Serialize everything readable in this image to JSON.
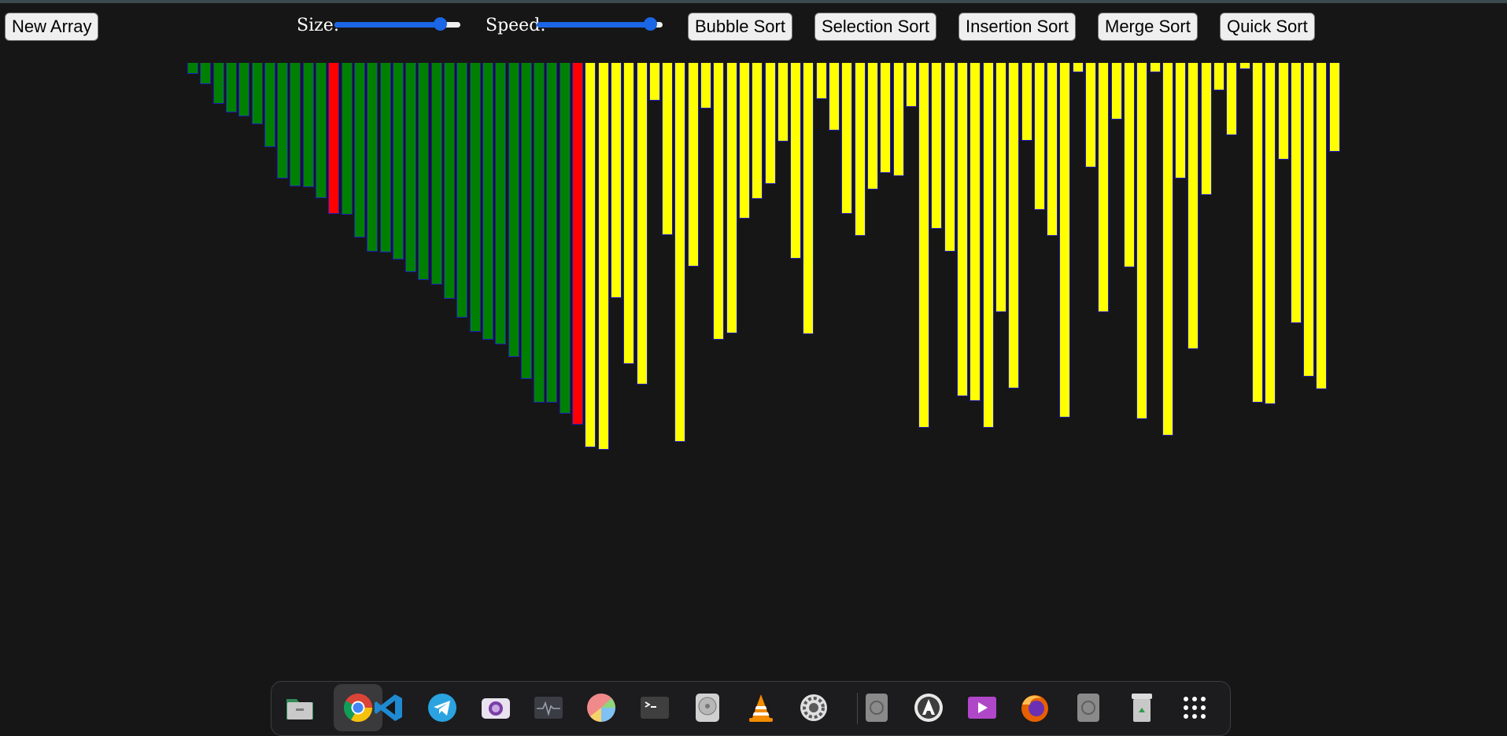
{
  "controls": {
    "new_array_label": "New Array",
    "size_label": "Size:",
    "speed_label": "Speed:",
    "size_value": 0.84,
    "speed_value": 0.9,
    "slider_color": "#1a66e6",
    "algorithms": [
      "Bubble Sort",
      "Selection Sort",
      "Insertion Sort",
      "Merge Sort",
      "Quick Sort"
    ]
  },
  "visualization": {
    "colors": {
      "sorted": "#008000",
      "compare": "#ff0000",
      "unsorted": "#ffff00",
      "border": "#1e1ec0"
    },
    "values": [
      14,
      27,
      52,
      63,
      68,
      78,
      107,
      147,
      157,
      158,
      172,
      192,
      193,
      222,
      240,
      241,
      250,
      266,
      276,
      282,
      300,
      324,
      342,
      352,
      358,
      374,
      402,
      432,
      432,
      446,
      460,
      489,
      492,
      299,
      383,
      409,
      48,
      219,
      482,
      259,
      58,
      352,
      344,
      198,
      173,
      154,
      100,
      249,
      345,
      46,
      86,
      192,
      220,
      161,
      140,
      144,
      56,
      464,
      211,
      240,
      424,
      430,
      464,
      317,
      414,
      99,
      187,
      220,
      451,
      12,
      133,
      317,
      72,
      260,
      453,
      12,
      474,
      147,
      364,
      168,
      35,
      92,
      8,
      432,
      434,
      123,
      331,
      399,
      415,
      113
    ],
    "states": [
      "sorted",
      "sorted",
      "sorted",
      "sorted",
      "sorted",
      "sorted",
      "sorted",
      "sorted",
      "sorted",
      "sorted",
      "sorted",
      "compare",
      "sorted",
      "sorted",
      "sorted",
      "sorted",
      "sorted",
      "sorted",
      "sorted",
      "sorted",
      "sorted",
      "sorted",
      "sorted",
      "sorted",
      "sorted",
      "sorted",
      "sorted",
      "sorted",
      "sorted",
      "sorted",
      "compare"
    ]
  },
  "dock": {
    "apps": [
      {
        "icon": "files-icon",
        "active": false
      },
      {
        "icon": "chrome-icon",
        "active": true
      },
      {
        "icon": "vscode-icon",
        "active": false
      },
      {
        "icon": "telegram-icon",
        "active": false
      },
      {
        "icon": "screenshot-icon",
        "active": false
      },
      {
        "icon": "system-monitor-icon",
        "active": false
      },
      {
        "icon": "disk-usage-icon",
        "active": false
      },
      {
        "icon": "terminal-icon",
        "active": false
      },
      {
        "icon": "disks-icon",
        "active": false
      },
      {
        "icon": "vlc-icon",
        "active": false
      },
      {
        "icon": "settings-icon",
        "active": false
      },
      {
        "icon": "drive-icon",
        "active": false
      },
      {
        "icon": "software-updater-icon",
        "active": false
      },
      {
        "icon": "video-player-icon",
        "active": false
      },
      {
        "icon": "firefox-icon",
        "active": false
      },
      {
        "icon": "drive2-icon",
        "active": false
      },
      {
        "icon": "trash-icon",
        "active": false
      },
      {
        "icon": "app-grid-icon",
        "active": false
      }
    ]
  }
}
